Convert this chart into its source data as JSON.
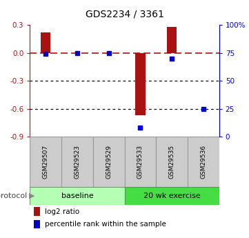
{
  "title": "GDS2234 / 3361",
  "samples": [
    "GSM29507",
    "GSM29523",
    "GSM29529",
    "GSM29533",
    "GSM29535",
    "GSM29536"
  ],
  "log2_ratios": [
    0.22,
    0.0,
    0.0,
    -0.67,
    0.28,
    0.0
  ],
  "percentile_ranks": [
    74,
    75,
    75,
    8,
    70,
    25
  ],
  "bar_color": "#aa1111",
  "dot_color": "#0000cc",
  "left_ylim": [
    -0.9,
    0.3
  ],
  "left_yticks": [
    0.3,
    0.0,
    -0.3,
    -0.6,
    -0.9
  ],
  "right_ylim": [
    0,
    100
  ],
  "right_yticks": [
    100,
    75,
    50,
    25,
    0
  ],
  "dotted_lines": [
    -0.3,
    -0.6
  ],
  "bg_color": "#ffffff",
  "title_fontsize": 10,
  "baseline_color": "#b3ffb3",
  "exercise_color": "#44dd44",
  "sample_box_color": "#cccccc",
  "sample_box_edge": "#999999"
}
